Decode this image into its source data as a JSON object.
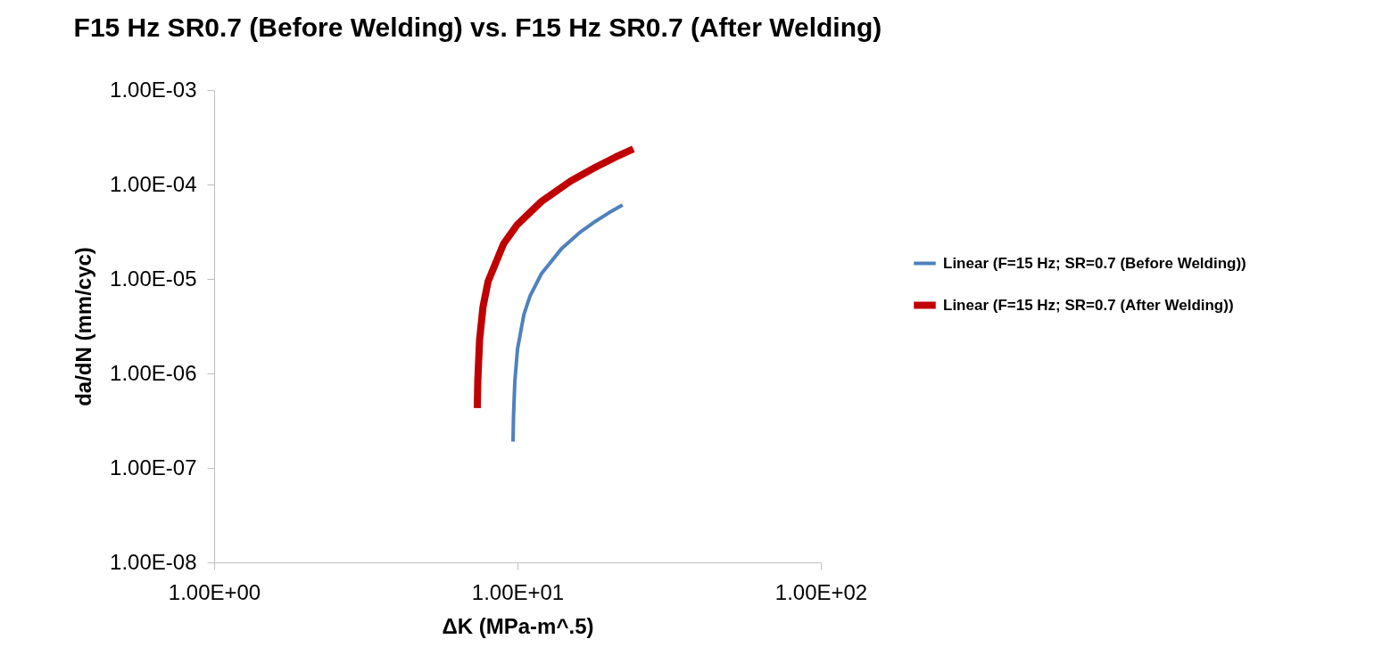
{
  "chart_data": {
    "type": "line",
    "title": "F15 Hz SR0.7 (Before Welding) vs. F15 Hz SR0.7 (After Welding)",
    "xlabel": "ΔK (MPa-m^.5)",
    "ylabel": "da/dN (mm/cyc)",
    "log": "xy",
    "grid": false,
    "legend": "right",
    "marker": "none",
    "line_style": "solid",
    "xlim": [
      1,
      100
    ],
    "xticks": [
      {
        "value": 1,
        "label": "1.00E+00"
      },
      {
        "value": 10,
        "label": "1.00E+01"
      },
      {
        "value": 100,
        "label": "1.00E+02"
      }
    ],
    "ylim": [
      1e-08,
      0.001
    ],
    "yticks": [
      {
        "value": 1e-08,
        "label": "1.00E-08"
      },
      {
        "value": 1e-07,
        "label": "1.00E-07"
      },
      {
        "value": 1e-06,
        "label": "1.00E-06"
      },
      {
        "value": 1e-05,
        "label": "1.00E-05"
      },
      {
        "value": 0.0001,
        "label": "1.00E-04"
      },
      {
        "value": 0.001,
        "label": "1.00E-03"
      }
    ],
    "series": [
      {
        "name": "Linear (F=15 Hz; SR=0.7 (Before Welding))",
        "color": "#4f81bd",
        "x": [
          9.67,
          9.7,
          9.8,
          10,
          10.5,
          11,
          12,
          14,
          16,
          18,
          20,
          22.2
        ],
        "values": [
          1.9e-07,
          3.4e-07,
          8.2e-07,
          1.8e-06,
          4.2e-06,
          6.6e-06,
          1.14e-05,
          2.11e-05,
          3.08e-05,
          4.04e-05,
          5.01e-05,
          6.07e-05
        ]
      },
      {
        "name": "Linear (F=15 Hz; SR=0.7 (After Welding))",
        "color": "#c00000",
        "x": [
          7.37,
          7.4,
          7.5,
          7.7,
          8,
          9,
          10,
          12,
          15,
          18,
          21,
          24.1
        ],
        "values": [
          4.3e-07,
          8.5e-07,
          2.27e-06,
          5.1e-06,
          9.4e-06,
          2.36e-05,
          3.78e-05,
          6.62e-05,
          0.000109,
          0.000151,
          0.000194,
          0.000238
        ]
      }
    ]
  }
}
